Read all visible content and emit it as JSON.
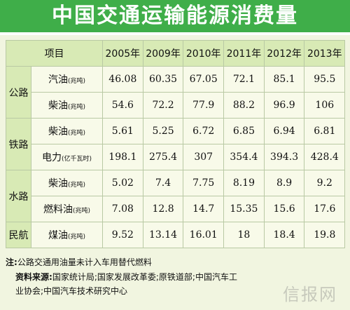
{
  "title": "中国交通运输能源消费量",
  "header": {
    "item": "项目",
    "years": [
      "2005年",
      "2009年",
      "2010年",
      "2011年",
      "2012年",
      "2013年"
    ]
  },
  "rows": [
    {
      "mode": "公路",
      "fuel": "汽油",
      "unit": "(兆吨)",
      "values": [
        "46.08",
        "60.35",
        "67.05",
        "72.1",
        "85.1",
        "95.5"
      ]
    },
    {
      "mode": "",
      "fuel": "柴油",
      "unit": "(兆吨)",
      "values": [
        "54.6",
        "72.2",
        "77.9",
        "88.2",
        "96.9",
        "106"
      ]
    },
    {
      "mode": "铁路",
      "fuel": "柴油",
      "unit": "(兆吨)",
      "values": [
        "5.61",
        "5.25",
        "6.72",
        "6.85",
        "6.94",
        "6.81"
      ]
    },
    {
      "mode": "",
      "fuel": "电力",
      "unit": "(亿千瓦时)",
      "values": [
        "198.1",
        "275.4",
        "307",
        "354.4",
        "394.3",
        "428.4"
      ]
    },
    {
      "mode": "水路",
      "fuel": "柴油",
      "unit": "(兆吨)",
      "values": [
        "5.02",
        "7.4",
        "7.75",
        "8.19",
        "8.9",
        "9.2"
      ]
    },
    {
      "mode": "",
      "fuel": "燃料油",
      "unit": "(兆吨)",
      "values": [
        "7.08",
        "12.8",
        "14.7",
        "15.35",
        "15.6",
        "17.6"
      ]
    },
    {
      "mode": "民航",
      "fuel": "煤油",
      "unit": "(兆吨)",
      "values": [
        "9.52",
        "13.14",
        "16.01",
        "18",
        "18.4",
        "19.8"
      ]
    }
  ],
  "note": {
    "label": "注:",
    "text": "公路交通用油量未计入车用替代燃料"
  },
  "source": {
    "label": "资料来源:",
    "line1": "国家统计局;国家发展改革委;原铁道部;中国汽车工",
    "line2": "业协会;中国汽车技术研究中心"
  },
  "watermark": "信报网",
  "colors": {
    "title_bar": "#3fae49",
    "header_bg": "#d8eab5",
    "page_bg": "#f1f5e0"
  }
}
